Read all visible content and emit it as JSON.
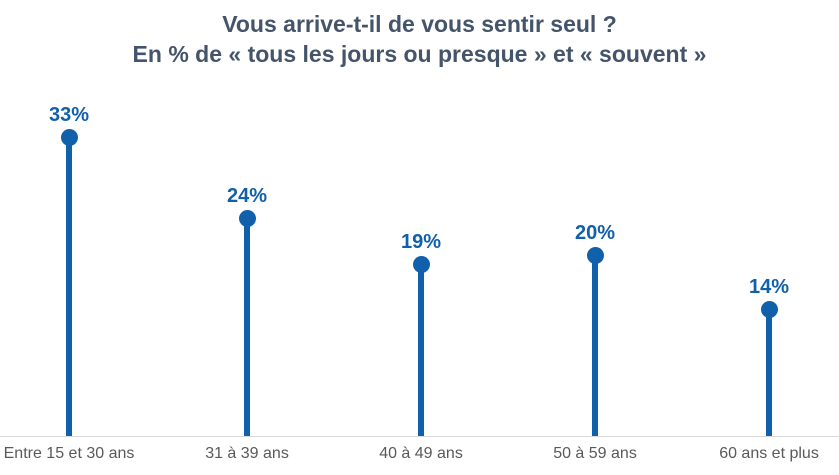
{
  "title": {
    "line1": "Vous arrive-t-il de vous sentir seul ?",
    "line2": "En % de « tous les jours ou presque » et « souvent »"
  },
  "chart_data": {
    "type": "bar",
    "variant": "lollipop",
    "title": "Vous arrive-t-il de vous sentir seul ?",
    "subtitle": "En % de « tous les jours ou presque » et « souvent »",
    "categories": [
      "Entre 15 et 30 ans",
      "31 à 39 ans",
      "40 à 49 ans",
      "50 à 59 ans",
      "60 ans et plus"
    ],
    "values": [
      33,
      24,
      19,
      20,
      14
    ],
    "data_labels": [
      "33%",
      "24%",
      "19%",
      "20%",
      "14%"
    ],
    "unit": "%",
    "xlabel": "",
    "ylabel": "",
    "ylim": [
      0,
      35
    ],
    "grid": false,
    "legend": false,
    "colors": {
      "marker": "#1160AB",
      "data_label": "#1160AB",
      "title": "#44546A",
      "axis_label": "#595959",
      "axis_line": "#D9D9D9",
      "background": "#FFFFFF"
    }
  }
}
